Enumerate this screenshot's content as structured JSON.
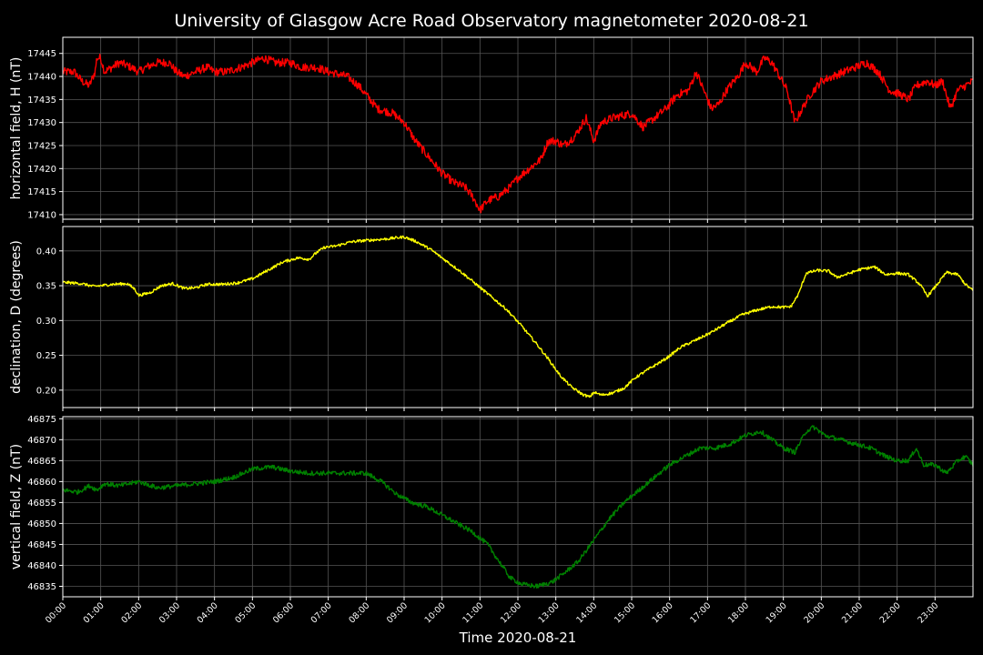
{
  "chart_data": {
    "title": "University of Glasgow Acre Road Observatory magnetometer 2020-08-21",
    "xlabel": "Time 2020-08-21",
    "x_ticks": [
      "00:00",
      "01:00",
      "02:00",
      "03:00",
      "04:00",
      "05:00",
      "06:00",
      "07:00",
      "08:00",
      "09:00",
      "10:00",
      "11:00",
      "12:00",
      "13:00",
      "14:00",
      "15:00",
      "16:00",
      "17:00",
      "18:00",
      "19:00",
      "20:00",
      "21:00",
      "22:00",
      "23:00"
    ],
    "x_range_hours": [
      0,
      24
    ],
    "background": "#000000",
    "grid": true,
    "panels": [
      {
        "type": "line",
        "ylabel": "horizontal field, H (nT)",
        "color": "#ff0000",
        "ylim": [
          17409,
          17448.5
        ],
        "yticks": [
          17410,
          17415,
          17420,
          17425,
          17430,
          17435,
          17440,
          17445
        ],
        "noise": 0.9,
        "points": [
          [
            0,
            17441
          ],
          [
            0.3,
            17441
          ],
          [
            0.5,
            17439
          ],
          [
            0.7,
            17438
          ],
          [
            0.85,
            17441
          ],
          [
            0.9,
            17444
          ],
          [
            1.0,
            17444
          ],
          [
            1.1,
            17441
          ],
          [
            1.3,
            17442
          ],
          [
            1.5,
            17443
          ],
          [
            1.8,
            17442
          ],
          [
            2.0,
            17441
          ],
          [
            2.2,
            17442
          ],
          [
            2.5,
            17443
          ],
          [
            2.8,
            17443
          ],
          [
            3.0,
            17441
          ],
          [
            3.2,
            17440
          ],
          [
            3.5,
            17441
          ],
          [
            3.8,
            17442
          ],
          [
            4.0,
            17441
          ],
          [
            4.3,
            17441
          ],
          [
            4.7,
            17442
          ],
          [
            5.0,
            17443
          ],
          [
            5.3,
            17444
          ],
          [
            5.6,
            17443
          ],
          [
            6.0,
            17443
          ],
          [
            6.3,
            17442
          ],
          [
            6.7,
            17442
          ],
          [
            7.0,
            17441
          ],
          [
            7.5,
            17440
          ],
          [
            7.8,
            17438
          ],
          [
            8.0,
            17436
          ],
          [
            8.3,
            17433
          ],
          [
            8.7,
            17432
          ],
          [
            9.0,
            17430
          ],
          [
            9.3,
            17426
          ],
          [
            9.6,
            17423
          ],
          [
            10.0,
            17419
          ],
          [
            10.3,
            17417
          ],
          [
            10.6,
            17416
          ],
          [
            10.8,
            17414
          ],
          [
            11.0,
            17411
          ],
          [
            11.2,
            17413
          ],
          [
            11.5,
            17414
          ],
          [
            11.8,
            17416
          ],
          [
            12.0,
            17418
          ],
          [
            12.3,
            17420
          ],
          [
            12.6,
            17422
          ],
          [
            12.8,
            17426
          ],
          [
            13.0,
            17426
          ],
          [
            13.2,
            17425
          ],
          [
            13.5,
            17427
          ],
          [
            13.8,
            17431
          ],
          [
            14.0,
            17426
          ],
          [
            14.2,
            17430
          ],
          [
            14.5,
            17431
          ],
          [
            15.0,
            17432
          ],
          [
            15.3,
            17429
          ],
          [
            15.6,
            17431
          ],
          [
            15.9,
            17433
          ],
          [
            16.2,
            17436
          ],
          [
            16.5,
            17437
          ],
          [
            16.7,
            17441
          ],
          [
            16.9,
            17437
          ],
          [
            17.1,
            17433
          ],
          [
            17.3,
            17434
          ],
          [
            17.5,
            17437
          ],
          [
            17.8,
            17440
          ],
          [
            18.0,
            17443
          ],
          [
            18.3,
            17441
          ],
          [
            18.5,
            17444
          ],
          [
            18.7,
            17443
          ],
          [
            18.9,
            17440
          ],
          [
            19.1,
            17437
          ],
          [
            19.3,
            17430
          ],
          [
            19.5,
            17433
          ],
          [
            19.7,
            17436
          ],
          [
            20.0,
            17439
          ],
          [
            20.3,
            17440
          ],
          [
            20.6,
            17441
          ],
          [
            20.9,
            17442
          ],
          [
            21.2,
            17443
          ],
          [
            21.5,
            17441
          ],
          [
            21.8,
            17437
          ],
          [
            22.1,
            17436
          ],
          [
            22.3,
            17435
          ],
          [
            22.5,
            17438
          ],
          [
            22.8,
            17439
          ],
          [
            23.0,
            17438
          ],
          [
            23.2,
            17439
          ],
          [
            23.4,
            17433
          ],
          [
            23.6,
            17437
          ],
          [
            23.8,
            17438
          ],
          [
            24.0,
            17439
          ]
        ]
      },
      {
        "type": "line",
        "ylabel": "declination, D (degrees)",
        "color": "#ffff00",
        "ylim": [
          0.175,
          0.435
        ],
        "yticks": [
          0.2,
          0.25,
          0.3,
          0.35,
          0.4
        ],
        "tick_decimals": 2,
        "noise": 0.002,
        "points": [
          [
            0,
            0.355
          ],
          [
            0.5,
            0.353
          ],
          [
            0.8,
            0.349
          ],
          [
            1.0,
            0.35
          ],
          [
            1.3,
            0.352
          ],
          [
            1.7,
            0.353
          ],
          [
            1.9,
            0.345
          ],
          [
            2.0,
            0.336
          ],
          [
            2.3,
            0.34
          ],
          [
            2.6,
            0.35
          ],
          [
            2.9,
            0.353
          ],
          [
            3.2,
            0.346
          ],
          [
            3.5,
            0.347
          ],
          [
            3.8,
            0.352
          ],
          [
            4.2,
            0.352
          ],
          [
            4.6,
            0.354
          ],
          [
            5.0,
            0.36
          ],
          [
            5.4,
            0.372
          ],
          [
            5.8,
            0.384
          ],
          [
            6.2,
            0.39
          ],
          [
            6.5,
            0.388
          ],
          [
            6.7,
            0.398
          ],
          [
            6.9,
            0.405
          ],
          [
            7.2,
            0.407
          ],
          [
            7.6,
            0.413
          ],
          [
            8.0,
            0.415
          ],
          [
            8.5,
            0.417
          ],
          [
            9.0,
            0.42
          ],
          [
            9.3,
            0.414
          ],
          [
            9.7,
            0.402
          ],
          [
            10.1,
            0.386
          ],
          [
            10.5,
            0.37
          ],
          [
            10.9,
            0.352
          ],
          [
            11.3,
            0.334
          ],
          [
            11.7,
            0.316
          ],
          [
            12.1,
            0.292
          ],
          [
            12.5,
            0.266
          ],
          [
            12.8,
            0.245
          ],
          [
            13.1,
            0.222
          ],
          [
            13.4,
            0.205
          ],
          [
            13.7,
            0.194
          ],
          [
            13.9,
            0.19
          ],
          [
            14.0,
            0.197
          ],
          [
            14.2,
            0.193
          ],
          [
            14.5,
            0.196
          ],
          [
            14.8,
            0.203
          ],
          [
            15.1,
            0.218
          ],
          [
            15.5,
            0.232
          ],
          [
            15.9,
            0.245
          ],
          [
            16.3,
            0.262
          ],
          [
            16.7,
            0.272
          ],
          [
            17.1,
            0.283
          ],
          [
            17.5,
            0.296
          ],
          [
            17.9,
            0.308
          ],
          [
            18.3,
            0.315
          ],
          [
            18.7,
            0.32
          ],
          [
            19.0,
            0.319
          ],
          [
            19.2,
            0.32
          ],
          [
            19.4,
            0.338
          ],
          [
            19.6,
            0.368
          ],
          [
            19.9,
            0.372
          ],
          [
            20.2,
            0.371
          ],
          [
            20.4,
            0.362
          ],
          [
            20.7,
            0.367
          ],
          [
            21.0,
            0.373
          ],
          [
            21.4,
            0.377
          ],
          [
            21.7,
            0.366
          ],
          [
            22.0,
            0.368
          ],
          [
            22.3,
            0.366
          ],
          [
            22.6,
            0.352
          ],
          [
            22.8,
            0.335
          ],
          [
            23.0,
            0.348
          ],
          [
            23.3,
            0.369
          ],
          [
            23.6,
            0.366
          ],
          [
            23.8,
            0.352
          ],
          [
            24.0,
            0.343
          ]
        ]
      },
      {
        "type": "line",
        "ylabel": "vertical field, Z (nT)",
        "color": "#008000",
        "ylim": [
          46832.5,
          46875.5
        ],
        "yticks": [
          46835,
          46840,
          46845,
          46850,
          46855,
          46860,
          46865,
          46870,
          46875
        ],
        "noise": 0.55,
        "points": [
          [
            0,
            46858
          ],
          [
            0.4,
            46857.5
          ],
          [
            0.7,
            46859
          ],
          [
            0.9,
            46858
          ],
          [
            1.1,
            46859.5
          ],
          [
            1.5,
            46859
          ],
          [
            2.0,
            46860
          ],
          [
            2.5,
            46858.5
          ],
          [
            3.0,
            46859
          ],
          [
            3.5,
            46859.5
          ],
          [
            4.0,
            46860
          ],
          [
            4.5,
            46861
          ],
          [
            5.0,
            46863
          ],
          [
            5.5,
            46863.5
          ],
          [
            6.0,
            46862.5
          ],
          [
            6.5,
            46862
          ],
          [
            7.0,
            46862
          ],
          [
            7.5,
            46862
          ],
          [
            8.0,
            46862
          ],
          [
            8.4,
            46860
          ],
          [
            8.8,
            46857
          ],
          [
            9.2,
            46855
          ],
          [
            9.6,
            46854
          ],
          [
            10.0,
            46852
          ],
          [
            10.4,
            46850
          ],
          [
            10.8,
            46848
          ],
          [
            11.2,
            46845
          ],
          [
            11.5,
            46841
          ],
          [
            11.8,
            46837
          ],
          [
            12.1,
            46835.5
          ],
          [
            12.5,
            46835
          ],
          [
            12.9,
            46836
          ],
          [
            13.2,
            46838
          ],
          [
            13.6,
            46841
          ],
          [
            14.0,
            46846
          ],
          [
            14.4,
            46851
          ],
          [
            14.8,
            46855
          ],
          [
            15.2,
            46858
          ],
          [
            15.6,
            46861
          ],
          [
            16.0,
            46864
          ],
          [
            16.4,
            46866
          ],
          [
            16.8,
            46868
          ],
          [
            17.2,
            46868
          ],
          [
            17.6,
            46869
          ],
          [
            18.0,
            46871
          ],
          [
            18.4,
            46872
          ],
          [
            18.7,
            46870
          ],
          [
            19.0,
            46868
          ],
          [
            19.3,
            46867
          ],
          [
            19.6,
            46872
          ],
          [
            19.8,
            46873
          ],
          [
            20.1,
            46871
          ],
          [
            20.5,
            46870
          ],
          [
            20.9,
            46869
          ],
          [
            21.3,
            46868
          ],
          [
            21.7,
            46866
          ],
          [
            22.0,
            46865
          ],
          [
            22.3,
            46865
          ],
          [
            22.5,
            46868
          ],
          [
            22.7,
            46864
          ],
          [
            23.0,
            46864
          ],
          [
            23.3,
            46862
          ],
          [
            23.6,
            46865
          ],
          [
            23.8,
            46866
          ],
          [
            24.0,
            46864
          ]
        ]
      }
    ]
  }
}
